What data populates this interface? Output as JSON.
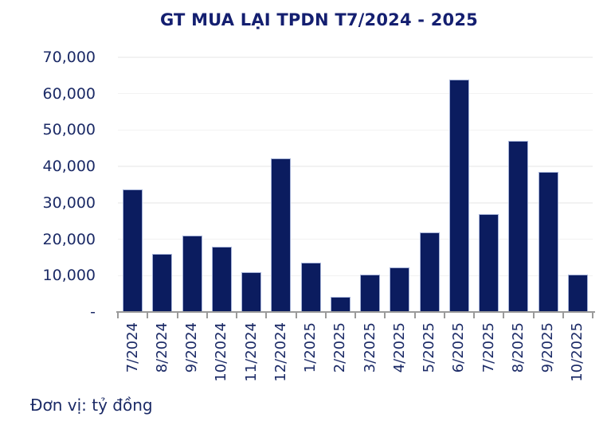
{
  "chart_data": {
    "type": "bar",
    "title": "GT MUA LẠI TPDN T7/2024 - 2025",
    "unit_note": "Đơn vị: tỷ đồng",
    "categories": [
      "7/2024",
      "8/2024",
      "9/2024",
      "10/2024",
      "11/2024",
      "12/2024",
      "1/2025",
      "2/2025",
      "3/2025",
      "4/2025",
      "5/2025",
      "6/2025",
      "7/2025",
      "8/2025",
      "9/2025",
      "10/2025"
    ],
    "values": [
      33700,
      16000,
      21000,
      17900,
      11000,
      42300,
      13600,
      4100,
      10300,
      12300,
      21900,
      63800,
      27000,
      47000,
      38500,
      10300
    ],
    "xlabel": "",
    "ylabel": "",
    "ylim": [
      0,
      70000
    ],
    "y_tick_step": 10000,
    "y_tick_labels": [
      "-",
      "10,000",
      "20,000",
      "30,000",
      "40,000",
      "50,000",
      "60,000",
      "70,000"
    ],
    "grid": true,
    "legend": "none",
    "colors": {
      "bar_fill": "#0B1C5F",
      "bar_edge": "#A6B3D8",
      "gridline": "#F2F2F2",
      "axis": "#9A9A9A",
      "title_text": "#141F70",
      "label_text": "#1B2A66"
    }
  }
}
